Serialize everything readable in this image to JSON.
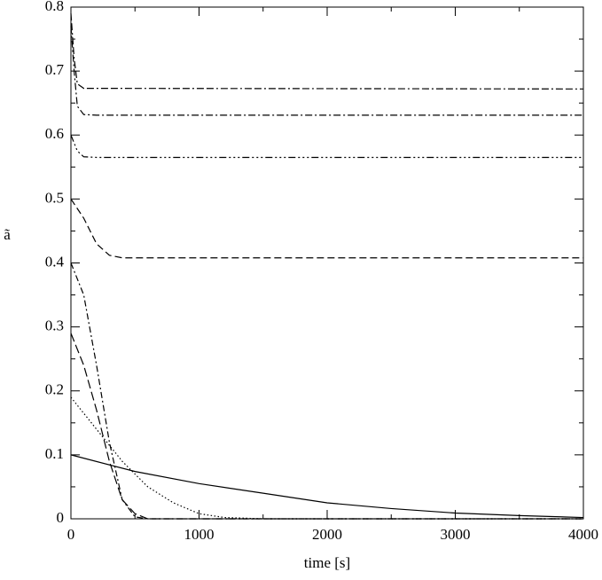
{
  "chart_data": {
    "type": "line",
    "xlabel": "time [s]",
    "ylabel": "ã",
    "xlim": [
      0,
      4000
    ],
    "ylim": [
      0,
      0.8
    ],
    "xticks": [
      0,
      1000,
      2000,
      3000,
      4000
    ],
    "yticks": [
      0,
      0.1,
      0.2,
      0.3,
      0.4,
      0.5,
      0.6,
      0.7,
      0.8
    ],
    "xminorticks": [
      500,
      1500,
      2500,
      3500
    ],
    "yminorticks": [
      0.05,
      0.15,
      0.25,
      0.35,
      0.45,
      0.55,
      0.65,
      0.75
    ],
    "series": [
      {
        "color": "#000",
        "dash": "",
        "x": [
          0,
          500,
          1000,
          1500,
          2000,
          2500,
          3000,
          3500,
          4000
        ],
        "values": [
          0.1,
          0.074,
          0.055,
          0.04,
          0.025,
          0.016,
          0.009,
          0.005,
          0.002
        ]
      },
      {
        "color": "#000",
        "dash": "1.5 2.5",
        "x": [
          0,
          200,
          400,
          600,
          800,
          1000,
          1200,
          1500,
          4000
        ],
        "values": [
          0.19,
          0.14,
          0.09,
          0.05,
          0.025,
          0.008,
          0.002,
          0,
          0
        ]
      },
      {
        "color": "#000",
        "dash": "10 4",
        "x": [
          0,
          100,
          200,
          300,
          400,
          500,
          600,
          4000
        ],
        "values": [
          0.29,
          0.24,
          0.17,
          0.09,
          0.03,
          0.008,
          0,
          0
        ]
      },
      {
        "color": "#000",
        "dash": "7 3 2 3",
        "x": [
          0,
          100,
          200,
          300,
          400,
          500,
          600,
          4000
        ],
        "values": [
          0.4,
          0.35,
          0.24,
          0.12,
          0.03,
          0.003,
          0,
          0
        ]
      },
      {
        "color": "#000",
        "dash": "8 4",
        "x": [
          0,
          100,
          200,
          300,
          400,
          4000
        ],
        "values": [
          0.5,
          0.47,
          0.43,
          0.412,
          0.408,
          0.408
        ]
      },
      {
        "color": "#000",
        "dash": "8 3 2 3 2 3 2 3",
        "x": [
          0,
          50,
          100,
          200,
          4000
        ],
        "values": [
          0.6,
          0.575,
          0.566,
          0.565,
          0.565
        ]
      },
      {
        "color": "#000",
        "dash": "8 3 2 3",
        "x": [
          0,
          25,
          50,
          100,
          200,
          4000
        ],
        "values": [
          0.77,
          0.7,
          0.645,
          0.632,
          0.631,
          0.631
        ]
      },
      {
        "color": "#000",
        "dash": "8 3 8 3 2 3",
        "x": [
          0,
          25,
          50,
          100,
          4000
        ],
        "values": [
          0.79,
          0.72,
          0.68,
          0.673,
          0.672
        ]
      }
    ]
  }
}
